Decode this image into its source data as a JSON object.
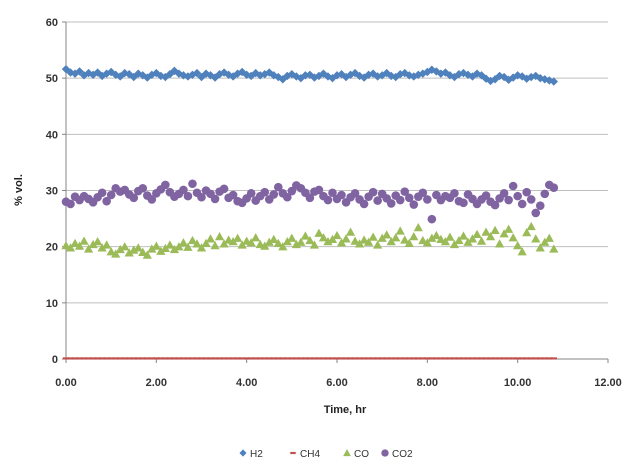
{
  "chart_data": {
    "type": "scatter",
    "xlabel": "Time, hr",
    "ylabel": "% vol.",
    "xlim": [
      0,
      12
    ],
    "ylim": [
      0,
      60
    ],
    "x_ticks": [
      "0.00",
      "2.00",
      "4.00",
      "6.00",
      "8.00",
      "10.00",
      "12.00"
    ],
    "y_ticks": [
      "0",
      "10",
      "20",
      "30",
      "40",
      "50",
      "60"
    ],
    "grid": "horizontal",
    "legend_position": "bottom",
    "x_step": 0.1,
    "series": [
      {
        "name": "H2",
        "marker": "diamond",
        "color": "#4f81bd",
        "values": [
          51.6,
          51.0,
          50.8,
          51.2,
          50.5,
          50.9,
          50.6,
          51.0,
          50.4,
          50.8,
          51.1,
          50.6,
          50.3,
          50.9,
          50.7,
          50.2,
          50.8,
          50.5,
          50.1,
          50.6,
          50.9,
          50.4,
          50.2,
          50.7,
          51.3,
          50.8,
          50.5,
          50.3,
          50.6,
          50.9,
          50.2,
          50.8,
          50.5,
          50.1,
          50.7,
          51.0,
          50.6,
          50.3,
          50.8,
          51.1,
          50.6,
          50.4,
          50.9,
          50.5,
          50.7,
          51.0,
          50.5,
          50.2,
          49.8,
          50.4,
          50.7,
          50.3,
          50.0,
          50.5,
          50.6,
          50.1,
          50.4,
          50.8,
          50.3,
          50.0,
          50.5,
          50.7,
          50.2,
          50.6,
          50.9,
          50.4,
          50.1,
          50.6,
          50.8,
          50.3,
          50.5,
          50.9,
          50.4,
          50.2,
          50.7,
          50.9,
          50.5,
          50.3,
          50.6,
          50.8,
          51.1,
          51.5,
          51.2,
          50.8,
          51.0,
          50.5,
          50.2,
          50.7,
          50.9,
          50.6,
          50.3,
          50.8,
          50.5,
          49.9,
          49.5,
          49.8,
          50.4,
          50.2,
          49.7,
          50.1,
          50.5,
          50.3,
          49.9,
          50.2,
          50.4,
          50.0,
          49.8,
          49.6,
          49.4
        ]
      },
      {
        "name": "CH4",
        "marker": "dash",
        "color": "#c0504d",
        "values": [
          0.1,
          0.1,
          0.1,
          0.1,
          0.1,
          0.1,
          0.1,
          0.1,
          0.1,
          0.1,
          0.1,
          0.1,
          0.1,
          0.1,
          0.1,
          0.1,
          0.1,
          0.1,
          0.1,
          0.1,
          0.1,
          0.1,
          0.1,
          0.1,
          0.1,
          0.1,
          0.1,
          0.1,
          0.1,
          0.1,
          0.1,
          0.1,
          0.1,
          0.1,
          0.1,
          0.1,
          0.1,
          0.1,
          0.1,
          0.1,
          0.1,
          0.1,
          0.1,
          0.1,
          0.1,
          0.1,
          0.1,
          0.1,
          0.1,
          0.1,
          0.1,
          0.1,
          0.1,
          0.1,
          0.1,
          0.1,
          0.1,
          0.1,
          0.1,
          0.1,
          0.1,
          0.1,
          0.1,
          0.1,
          0.1,
          0.1,
          0.1,
          0.1,
          0.1,
          0.1,
          0.1,
          0.1,
          0.1,
          0.1,
          0.1,
          0.1,
          0.1,
          0.1,
          0.1,
          0.1,
          0.1,
          0.1,
          0.1,
          0.1,
          0.1,
          0.1,
          0.1,
          0.1,
          0.1,
          0.1,
          0.1,
          0.1,
          0.1,
          0.1,
          0.1,
          0.1,
          0.1,
          0.1,
          0.1,
          0.1,
          0.1,
          0.1,
          0.1,
          0.1,
          0.1,
          0.1,
          0.1,
          0.1,
          0.1
        ]
      },
      {
        "name": "CO",
        "marker": "triangle",
        "color": "#9bbb59",
        "values": [
          20.2,
          19.8,
          20.6,
          20.1,
          21.0,
          19.6,
          20.4,
          20.9,
          19.8,
          20.3,
          19.1,
          18.7,
          19.5,
          20.0,
          18.9,
          19.4,
          19.8,
          19.0,
          18.5,
          19.6,
          20.1,
          19.2,
          19.7,
          20.3,
          19.5,
          20.0,
          20.7,
          19.9,
          21.1,
          20.5,
          19.8,
          20.6,
          21.4,
          20.2,
          21.8,
          20.5,
          21.2,
          20.9,
          21.5,
          20.3,
          21.0,
          20.7,
          21.6,
          20.4,
          20.1,
          20.8,
          21.3,
          20.6,
          20.0,
          20.9,
          21.5,
          20.4,
          20.8,
          21.9,
          21.1,
          20.3,
          22.4,
          21.6,
          20.9,
          21.3,
          22.0,
          20.7,
          21.4,
          22.6,
          21.0,
          20.5,
          21.2,
          20.8,
          21.7,
          20.3,
          21.5,
          22.1,
          20.9,
          21.6,
          22.8,
          21.2,
          20.6,
          21.8,
          23.4,
          21.1,
          20.7,
          21.5,
          22.0,
          21.3,
          20.9,
          21.7,
          20.4,
          21.1,
          21.9,
          20.8,
          21.4,
          22.2,
          21.0,
          22.6,
          21.8,
          22.9,
          20.5,
          22.3,
          23.1,
          21.6,
          20.2,
          19.1,
          22.5,
          23.6,
          21.4,
          19.8,
          20.8,
          21.5,
          19.6
        ]
      },
      {
        "name": "CO2",
        "marker": "circle",
        "color": "#8064a2",
        "values": [
          28.0,
          27.6,
          28.9,
          28.3,
          29.0,
          28.5,
          27.9,
          28.8,
          29.6,
          28.1,
          29.2,
          30.4,
          29.8,
          30.1,
          29.3,
          28.7,
          29.9,
          30.4,
          29.1,
          28.4,
          29.5,
          30.2,
          31.0,
          29.7,
          28.9,
          29.4,
          30.1,
          29.0,
          31.2,
          29.6,
          28.8,
          30.0,
          29.4,
          28.5,
          29.8,
          30.3,
          28.7,
          29.2,
          28.1,
          27.8,
          28.6,
          29.5,
          28.2,
          29.0,
          29.7,
          28.4,
          29.3,
          30.6,
          29.5,
          28.8,
          29.9,
          30.9,
          30.4,
          29.6,
          28.7,
          29.8,
          30.1,
          29.0,
          28.3,
          29.6,
          28.5,
          29.2,
          27.9,
          28.8,
          29.5,
          28.4,
          27.6,
          28.9,
          29.7,
          28.2,
          29.4,
          28.6,
          27.7,
          29.1,
          28.3,
          29.8,
          28.7,
          27.5,
          28.9,
          29.6,
          28.4,
          24.9,
          29.2,
          28.3,
          29.0,
          28.7,
          29.5,
          28.1,
          27.8,
          29.3,
          28.5,
          27.6,
          28.4,
          29.1,
          28.0,
          27.4,
          28.6,
          29.5,
          28.3,
          30.8,
          29.0,
          27.6,
          29.7,
          28.4,
          26.0,
          27.3,
          29.4,
          31.0,
          30.5
        ]
      }
    ]
  }
}
